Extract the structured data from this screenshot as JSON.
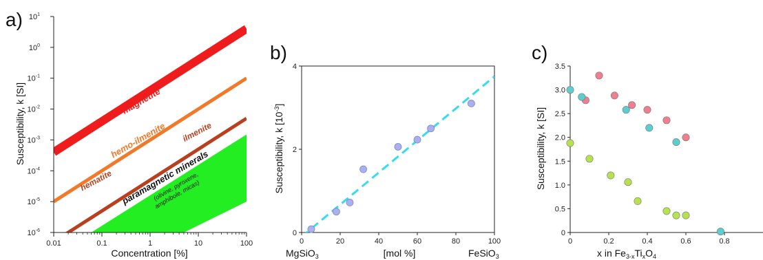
{
  "chart_data": [
    {
      "type": "line",
      "panel_label": "a)",
      "xlabel": "Concentration [%]",
      "ylabel": "Susceptibility, k [SI]",
      "x_scale": "log",
      "y_scale": "log",
      "xlim": [
        0.01,
        100
      ],
      "ylim": [
        1e-06,
        10
      ],
      "x_ticks": [
        {
          "v": 0.01,
          "label": "0.01"
        },
        {
          "v": 0.1,
          "label": "0.1"
        },
        {
          "v": 1,
          "label": "1"
        },
        {
          "v": 10,
          "label": "10"
        },
        {
          "v": 100,
          "label": "100"
        }
      ],
      "y_ticks": [
        {
          "v": 1e-06,
          "b": "10",
          "e": "-6"
        },
        {
          "v": 1e-05,
          "b": "10",
          "e": "-5"
        },
        {
          "v": 0.0001,
          "b": "10",
          "e": "-4"
        },
        {
          "v": 0.001,
          "b": "10",
          "e": "-3"
        },
        {
          "v": 0.01,
          "b": "10",
          "e": "-2"
        },
        {
          "v": 0.1,
          "b": "10",
          "e": "-1"
        },
        {
          "v": 1,
          "b": "10",
          "e": "0"
        },
        {
          "v": 10,
          "b": "10",
          "e": "1"
        }
      ],
      "series": [
        {
          "name": "magnetite",
          "color": "#ee1c1c",
          "x": [
            0.01,
            100
          ],
          "y": [
            0.0004,
            4
          ]
        },
        {
          "name": "hemo-ilmenite",
          "color": "#f07a2a",
          "x": [
            0.01,
            100
          ],
          "y": [
            1e-05,
            0.1
          ]
        },
        {
          "name": "ilmenite",
          "color": "#b8401e",
          "x": [
            0.01,
            100
          ],
          "y": [
            5e-07,
            0.005
          ]
        }
      ],
      "annotations": [
        {
          "text": "hematite",
          "color": "#b8401e",
          "x": 0.08,
          "y": 4e-05,
          "angle": -28
        },
        {
          "text": "ilmenite",
          "color": "#b8401e",
          "x": 10,
          "y": 0.0015,
          "angle": -28
        }
      ],
      "region": {
        "name": "paramagnetic minerals",
        "sub1": "(olivine, pyroxene,",
        "sub2": "amphibole, micas)",
        "color": "#22ee22",
        "polygon": [
          [
            0.06,
            1e-06
          ],
          [
            100,
            0.0015
          ],
          [
            100,
            1e-05
          ],
          [
            5,
            1e-06
          ]
        ]
      }
    },
    {
      "type": "scatter",
      "panel_label": "b)",
      "ylabel": "Susceptibility, k [10",
      "ylabel_exp": "-3",
      "ylabel_end": "]",
      "x_center_label": "[mol %]",
      "x_left_label": {
        "base": "MgSiO",
        "sub": "3"
      },
      "x_right_label": {
        "base": "FeSiO",
        "sub": "3"
      },
      "xlim": [
        0,
        100
      ],
      "ylim": [
        0,
        4
      ],
      "x_ticks": [
        0,
        20,
        40,
        60,
        80,
        100
      ],
      "y_ticks": [
        0,
        2,
        4
      ],
      "points": {
        "color": "#aab0ee",
        "x": [
          5,
          18,
          25,
          32,
          50,
          60,
          67,
          88
        ],
        "y": [
          0.08,
          0.5,
          0.72,
          1.52,
          2.06,
          2.23,
          2.5,
          3.1
        ]
      },
      "trend": {
        "color": "#33ddee",
        "x": [
          0,
          100
        ],
        "y": [
          -0.1,
          3.75
        ]
      }
    },
    {
      "type": "scatter",
      "panel_label": "c)",
      "ylabel": "Susceptibility, k [SI]",
      "xlabel_parts": {
        "a": "x in Fe",
        "sub1": "3-x",
        "b": "Ti",
        "sub2": "x",
        "c": "O",
        "sub3": "4"
      },
      "xlim": [
        0,
        1
      ],
      "ylim": [
        0,
        3.5
      ],
      "x_ticks": [
        {
          "v": 0,
          "label": "0"
        },
        {
          "v": 0.2,
          "label": "0.2"
        },
        {
          "v": 0.4,
          "label": "0.4"
        },
        {
          "v": 0.6,
          "label": "0.6"
        },
        {
          "v": 0.8,
          "label": "0.8"
        }
      ],
      "y_ticks": [
        {
          "v": 0,
          "label": "0"
        },
        {
          "v": 0.5,
          "label": "0.5"
        },
        {
          "v": 1,
          "label": "1.0"
        },
        {
          "v": 1.5,
          "label": "1.5"
        },
        {
          "v": 2,
          "label": "2.0"
        },
        {
          "v": 2.5,
          "label": "2.5"
        },
        {
          "v": 3,
          "label": "3.0"
        },
        {
          "v": 3.5,
          "label": "3.5"
        }
      ],
      "series": [
        {
          "color": "#ee7f8f",
          "x": [
            0.08,
            0.15,
            0.23,
            0.32,
            0.4,
            0.5,
            0.6
          ],
          "y": [
            2.78,
            3.3,
            2.88,
            2.68,
            2.58,
            2.36,
            2.0
          ]
        },
        {
          "color": "#5ccdd0",
          "x": [
            0.0,
            0.06,
            0.29,
            0.41,
            0.55,
            0.78
          ],
          "y": [
            3.0,
            2.85,
            2.58,
            2.2,
            1.9,
            0.02
          ]
        },
        {
          "color": "#b5e24e",
          "x": [
            0.0,
            0.1,
            0.21,
            0.3,
            0.35,
            0.5,
            0.55,
            0.6
          ],
          "y": [
            1.88,
            1.55,
            1.2,
            1.06,
            0.66,
            0.45,
            0.36,
            0.36
          ]
        }
      ]
    }
  ]
}
